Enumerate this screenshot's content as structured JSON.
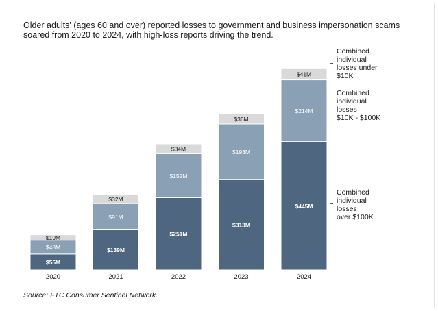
{
  "title": "Older adults' (ages 60 and over) reported losses to government and business impersonation scams soared from 2020 to 2024, with high-loss reports driving the trend.",
  "source": "Source: FTC Consumer Sentinel Network.",
  "colors": {
    "over_100k": "#4e667f",
    "mid_10k_100k": "#8aa0b5",
    "under_10k": "#d9d9d9",
    "label_dark": "#ffffff",
    "label_light": "#1a1a1a"
  },
  "chart_data": {
    "type": "bar",
    "stacked": true,
    "categories": [
      "2020",
      "2021",
      "2022",
      "2023",
      "2024"
    ],
    "series": [
      {
        "name": "Combined individual losses over $100K",
        "values": [
          55,
          139,
          251,
          313,
          445
        ],
        "labels": [
          "$55M",
          "$139M",
          "$251M",
          "$313M",
          "$445M"
        ]
      },
      {
        "name": "Combined individual losses $10K - $100K",
        "values": [
          48,
          91,
          152,
          193,
          214
        ],
        "labels": [
          "$48M",
          "$91M",
          "$152M",
          "$193M",
          "$214M"
        ]
      },
      {
        "name": "Combined individual losses under $10K",
        "values": [
          19,
          32,
          34,
          36,
          41
        ],
        "labels": [
          "$19M",
          "$32M",
          "$34M",
          "$36M",
          "$41M"
        ]
      }
    ],
    "legend_placement": "right",
    "grid": false
  },
  "legend": [
    {
      "lines": [
        "Combined",
        "individual",
        "losses under",
        "$10K"
      ]
    },
    {
      "lines": [
        "Combined",
        "individual",
        "losses",
        "$10K - $100K"
      ]
    },
    {
      "lines": [
        "Combined",
        "individual",
        "losses",
        "over $100K"
      ]
    }
  ]
}
